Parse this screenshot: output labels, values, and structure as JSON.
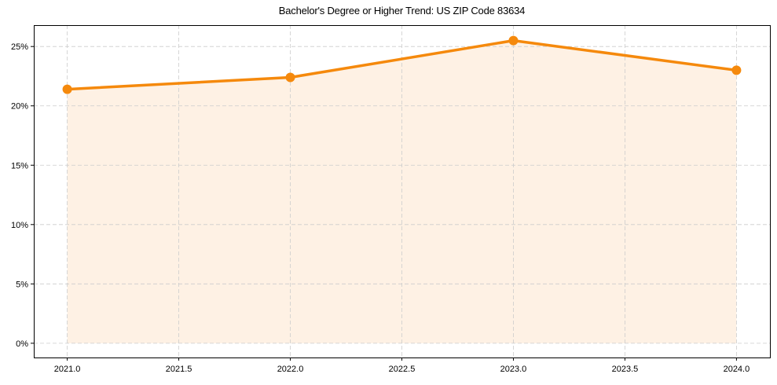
{
  "chart_data": {
    "type": "line",
    "title": "Bachelor's Degree or Higher Trend: US ZIP Code 83634",
    "xlabel": "",
    "ylabel": "",
    "x": [
      2021,
      2022,
      2023,
      2024
    ],
    "series": [
      {
        "name": "Bachelor's Degree or Higher",
        "values": [
          21.4,
          22.4,
          25.5,
          23.0
        ],
        "unit": "%"
      }
    ],
    "xticks": [
      "2021.0",
      "2021.5",
      "2022.0",
      "2022.5",
      "2023.0",
      "2023.5",
      "2024.0"
    ],
    "yticks": [
      "0%",
      "5%",
      "10%",
      "15%",
      "20%",
      "25%"
    ],
    "xlim": [
      2020.85,
      2024.15
    ],
    "ylim": [
      -1.2,
      26.8
    ],
    "grid": true,
    "legend": "none",
    "fill_under_line": true,
    "colors": {
      "line": "#f5890c",
      "fill": "#fef1e4",
      "grid": "#cccccc"
    }
  }
}
